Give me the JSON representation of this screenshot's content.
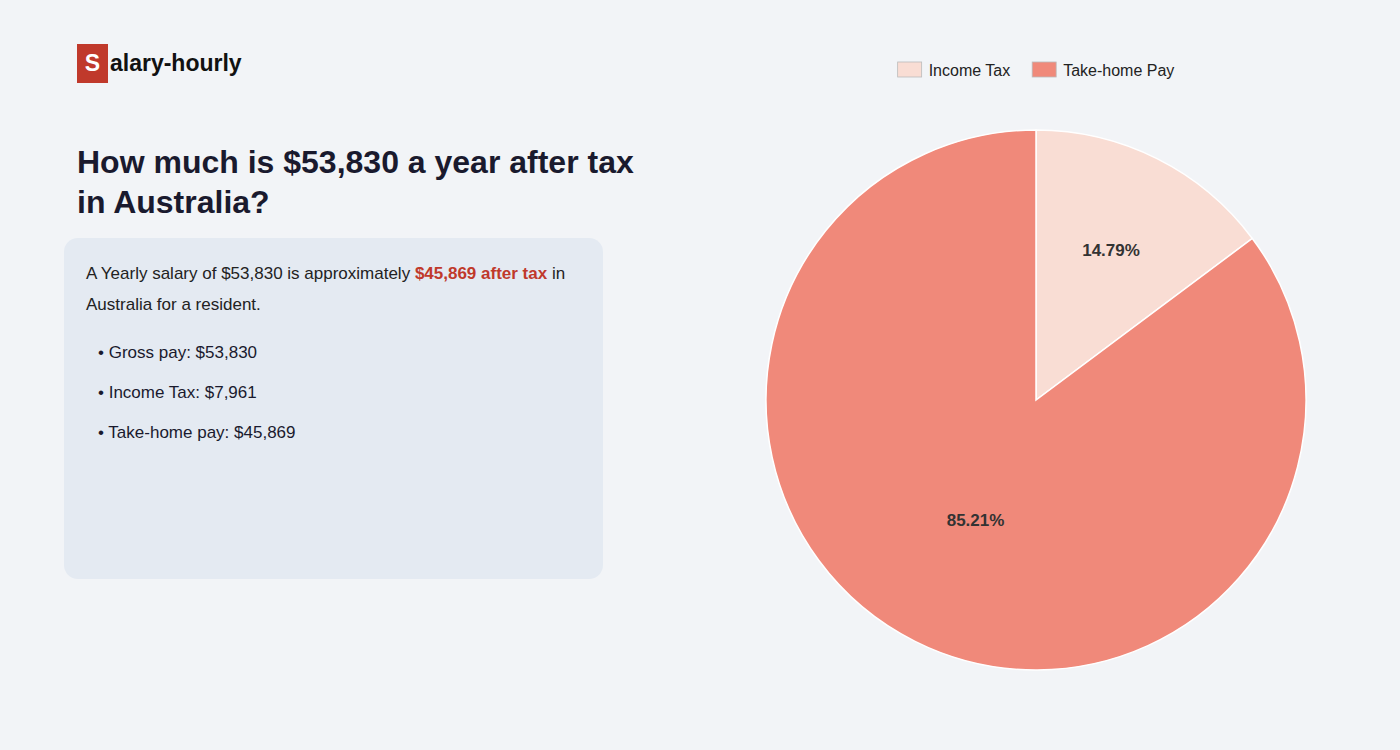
{
  "chart_data": {
    "type": "pie",
    "title": "How much is $53,830 a year after tax in Australia?",
    "annotations": [
      {
        "text": "S",
        "color": "#c0392b"
      },
      {
        "text": "alary-hourly"
      },
      {
        "text": "A Yearly salary of $53,830 is approximately "
      },
      {
        "text": "$45,869 after tax",
        "color": "#c0392b"
      },
      {
        "text": " in"
      },
      {
        "text": "Australia for a resident."
      },
      {
        "text": "• Gross pay: $53,830"
      },
      {
        "text": "• Income Tax: $7,961"
      },
      {
        "text": "• Take-home pay: $45,869"
      }
    ],
    "categories": [
      "Income Tax",
      "Take-home Pay"
    ],
    "values": [
      14.79,
      85.21
    ],
    "value_labels": [
      "14.79%",
      "85.21%"
    ],
    "colors": [
      "#f9ddd4",
      "#f0897a"
    ],
    "data_labels": true,
    "legend": "top"
  }
}
